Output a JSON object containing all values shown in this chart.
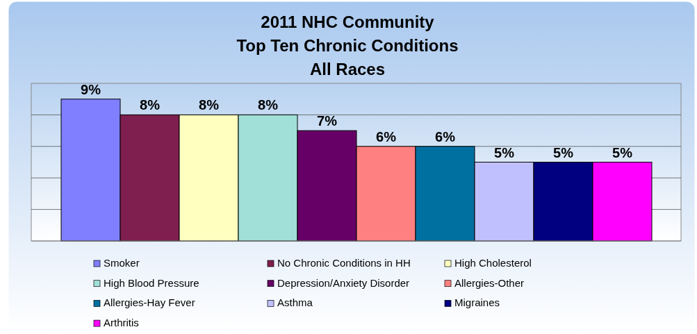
{
  "chart_data": {
    "type": "bar",
    "title": "2011 NHC Community\nTop Ten Chronic Conditions\nAll Races",
    "categories": [
      null
    ],
    "series": [
      {
        "name": "Smoker",
        "color": "#7f7fff",
        "values": [
          9
        ],
        "value_labels": [
          "9%"
        ]
      },
      {
        "name": "No Chronic Conditions in HH",
        "color": "#7f1f4f",
        "values": [
          8
        ],
        "value_labels": [
          "8%"
        ]
      },
      {
        "name": "High Cholesterol",
        "color": "#ffffc0",
        "values": [
          8
        ],
        "value_labels": [
          "8%"
        ]
      },
      {
        "name": "High Blood Pressure",
        "color": "#a0e0d8",
        "values": [
          8
        ],
        "value_labels": [
          "8%"
        ]
      },
      {
        "name": "Depression/Anxiety Disorder",
        "color": "#660066",
        "values": [
          7
        ],
        "value_labels": [
          "7%"
        ]
      },
      {
        "name": "Allergies-Other",
        "color": "#ff8080",
        "values": [
          6
        ],
        "value_labels": [
          "6%"
        ]
      },
      {
        "name": "Allergies-Hay Fever",
        "color": "#0070a0",
        "values": [
          6
        ],
        "value_labels": [
          "6%"
        ]
      },
      {
        "name": "Asthma",
        "color": "#c0c0ff",
        "values": [
          5
        ],
        "value_labels": [
          "5%"
        ]
      },
      {
        "name": "Migraines",
        "color": "#000080",
        "values": [
          5
        ],
        "value_labels": [
          "5%"
        ]
      },
      {
        "name": "Arthritis",
        "color": "#ff00ff",
        "values": [
          5
        ],
        "value_labels": [
          "5%"
        ]
      }
    ],
    "grid": true,
    "legend": "bottom"
  }
}
